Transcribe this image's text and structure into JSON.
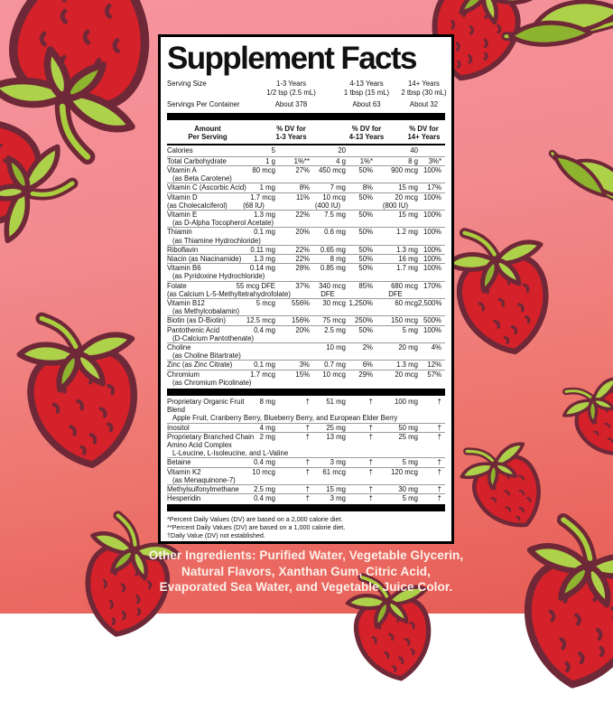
{
  "title": "Supplement Facts",
  "serving_size": {
    "label": "Serving Size",
    "values": [
      "1-3 Years\n1/2 tsp (2.5 mL)",
      "4-13 Years\n1 tbsp (15 mL)",
      "14+ Years\n2 tbsp (30 mL)"
    ]
  },
  "servings_per_container": {
    "label": "Servings Per Container",
    "values": [
      "About 378",
      "About 63",
      "About 32"
    ]
  },
  "column_headers": [
    "Amount\nPer Serving",
    "% DV for\n1-3 Years",
    "% DV for\n4-13 Years",
    "% DV for\n14+ Years"
  ],
  "calories": {
    "label": "Calories",
    "values": [
      "5",
      "20",
      "40"
    ]
  },
  "nutrient_rows": [
    {
      "name": "Total Carbohydrate",
      "cells": [
        "1 g",
        "1%**",
        "4 g",
        "1%*",
        "8 g",
        "3%*"
      ]
    },
    {
      "name": "Vitamin A",
      "sub": "(as Beta Carotene)",
      "cells": [
        "80 mcg",
        "27%",
        "450 mcg",
        "50%",
        "900 mcg",
        "100%"
      ]
    },
    {
      "name": "Vitamin C (Ascorbic Acid)",
      "cells": [
        "1 mg",
        "8%",
        "7 mg",
        "8%",
        "15 mg",
        "17%"
      ]
    },
    {
      "name": "Vitamin D",
      "sub": "(as Cholecalciferol)",
      "subcells": [
        "(68 IU)",
        "(400 IU)",
        "(800 IU)"
      ],
      "cells": [
        "1.7 mcg",
        "11%",
        "10 mcg",
        "50%",
        "20 mcg",
        "100%"
      ]
    },
    {
      "name": "Vitamin E",
      "sub": "(as D-Alpha Tocopherol Acetate)",
      "cells": [
        "1.3 mg",
        "22%",
        "7.5 mg",
        "50%",
        "15 mg",
        "100%"
      ]
    },
    {
      "name": "Thiamin",
      "sub": "(as Thiamine Hydrochloride)",
      "cells": [
        "0.1 mg",
        "20%",
        "0.6 mg",
        "50%",
        "1.2 mg",
        "100%"
      ]
    },
    {
      "name": "Riboflavin",
      "cells": [
        "0.11 mg",
        "22%",
        "0.65 mg",
        "50%",
        "1.3 mg",
        "100%"
      ]
    },
    {
      "name": "Niacin (as Niacinamide)",
      "cells": [
        "1.3 mg",
        "22%",
        "8 mg",
        "50%",
        "16 mg",
        "100%"
      ]
    },
    {
      "name": "Vitamin B6",
      "sub": "(as Pyridoxine Hydrochloride)",
      "cells": [
        "0.14 mg",
        "28%",
        "0.85 mg",
        "50%",
        "1.7 mg",
        "100%"
      ]
    },
    {
      "name": "Folate",
      "sub": "(as Calcium L-5-Methyltetrahydrofolate)",
      "subcells": [
        "",
        "DFE",
        "DFE"
      ],
      "cells": [
        "55 mcg DFE",
        "37%",
        "340 mcg",
        "85%",
        "680 mcg",
        "170%"
      ]
    },
    {
      "name": "Vitamin B12",
      "sub": "(as Methylcobalamin)",
      "cells": [
        "5 mcg",
        "556%",
        "30 mcg",
        "1,250%",
        "60 mcg",
        "2,500%"
      ]
    },
    {
      "name": "Biotin (as D-Biotin)",
      "cells": [
        "12.5 mcg",
        "156%",
        "75 mcg",
        "250%",
        "150 mcg",
        "500%"
      ]
    },
    {
      "name": "Pantothenic Acid",
      "sub": "(D-Calcium Pantothenate)",
      "cells": [
        "0.4 mg",
        "20%",
        "2.5 mg",
        "50%",
        "5 mg",
        "100%"
      ]
    },
    {
      "name": "Choline",
      "sub": "(as Choline Bitartrate)",
      "cells": [
        "",
        "",
        "10 mg",
        "2%",
        "20 mg",
        "4%"
      ]
    },
    {
      "name": "Zinc (as Zinc Citrate)",
      "cells": [
        "0.1 mg",
        "3%",
        "0.7 mg",
        "6%",
        "1.3 mg",
        "12%"
      ]
    },
    {
      "name": "Chromium",
      "sub": "(as Chromium Picolinate)",
      "cells": [
        "1.7 mcg",
        "15%",
        "10 mcg",
        "29%",
        "20 mcg",
        "57%"
      ]
    }
  ],
  "blend_rows": [
    {
      "name": "Proprietary Organic Fruit Blend",
      "list": "Apple Fruit, Cranberry Berry, Blueberry Berry, and European Elder Berry",
      "cells": [
        "8 mg",
        "†",
        "51 mg",
        "†",
        "100 mg",
        "†"
      ]
    },
    {
      "name": "Inositol",
      "cells": [
        "4 mg",
        "†",
        "25 mg",
        "†",
        "50 mg",
        "†"
      ]
    },
    {
      "name": "Proprietary Branched Chain Amino Acid Complex",
      "list": "L-Leucine, L-Isoleucine, and L-Valine",
      "cells": [
        "2 mg",
        "†",
        "13 mg",
        "†",
        "25 mg",
        "†"
      ]
    },
    {
      "name": "Betaine",
      "cells": [
        "0.4 mg",
        "†",
        "3 mg",
        "†",
        "5 mg",
        "†"
      ]
    },
    {
      "name": "Vitamin K2",
      "sub": "(as Menaquinone-7)",
      "cells": [
        "10 mcg",
        "†",
        "61 mcg",
        "†",
        "120 mcg",
        "†"
      ]
    },
    {
      "name": "Methylsulfonylmethane",
      "cells": [
        "2.5 mg",
        "†",
        "15 mg",
        "†",
        "30 mg",
        "†"
      ]
    },
    {
      "name": "Hesperidin",
      "cells": [
        "0.4 mg",
        "†",
        "3 mg",
        "†",
        "5 mg",
        "†"
      ]
    }
  ],
  "footnotes": [
    "*Percent Daily Values (DV) are based on a 2,000 calorie diet.",
    "**Percent Daily Values (DV) are based on a 1,000 calorie diet.",
    "†Daily Value (DV) not established."
  ],
  "other_ingredients": "Other Ingredients: Purified Water, Vegetable Glycerin, Natural Flavors, Xanthan Gum, Citric Acid, Evaporated Sea Water, and Vegetable Juice Color.",
  "colors": {
    "background_top": "#f6949e",
    "background_bottom": "#e65c54",
    "berry_red": "#d4212a",
    "berry_outline": "#6f2837",
    "leaf_green": "#aed14a",
    "leaf_dark_green": "#8db32f",
    "label_background": "#ffffff",
    "label_border": "#000000",
    "other_ingredients_text": "#fdf1ea"
  }
}
